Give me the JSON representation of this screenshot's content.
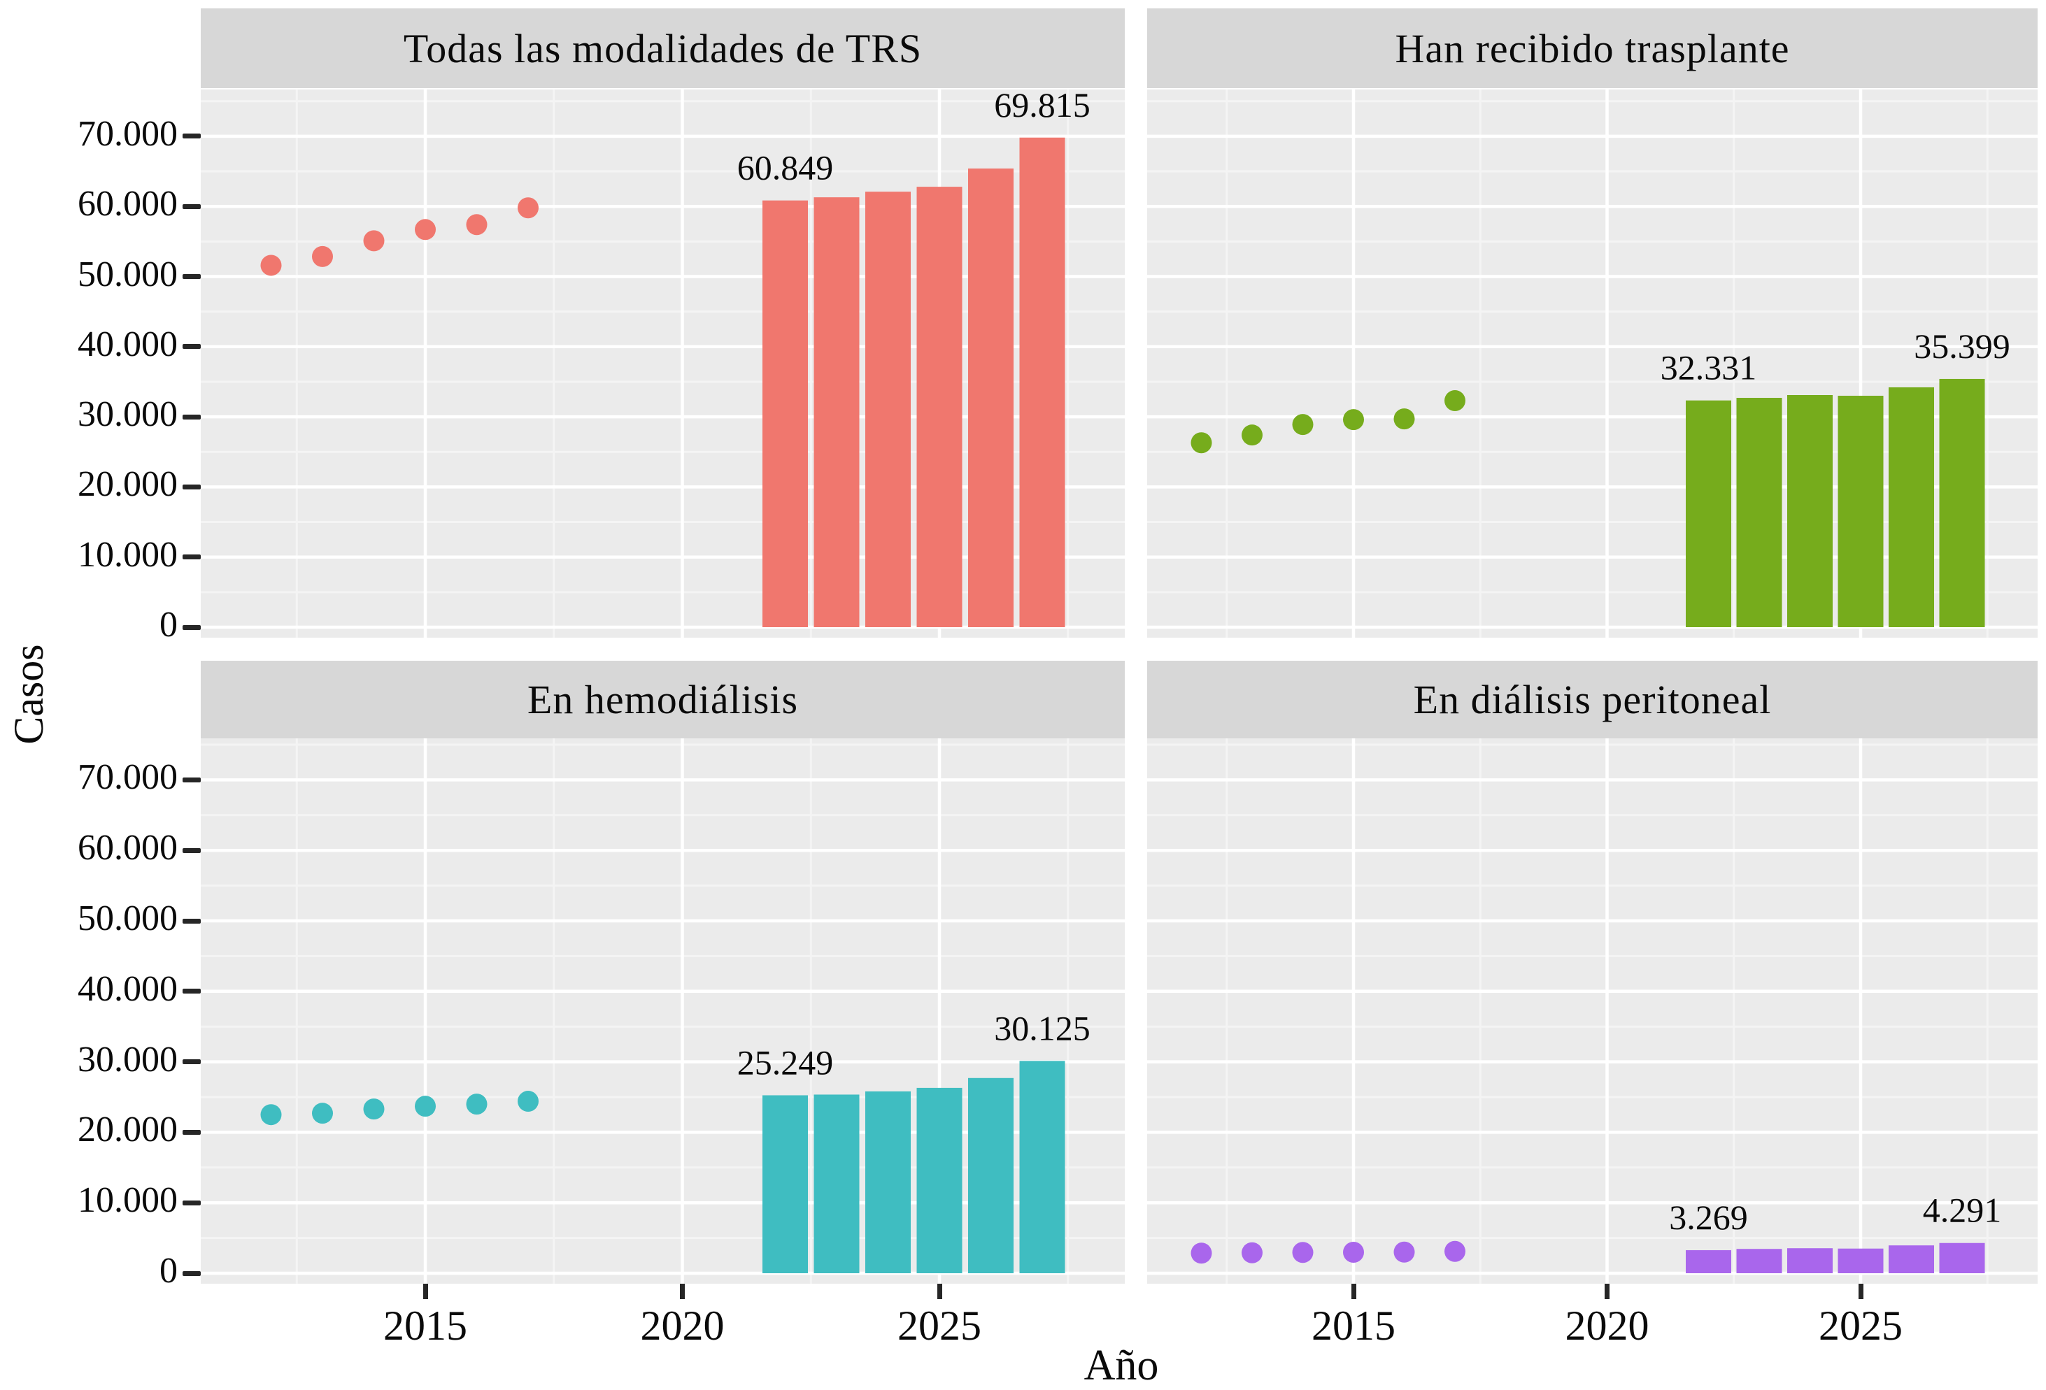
{
  "figure": {
    "ylabel": "Casos",
    "xlabel": "Año",
    "y_tick_labels": [
      "0",
      "10.000",
      "20.000",
      "30.000",
      "40.000",
      "50.000",
      "60.000",
      "70.000"
    ],
    "y_tick_values": [
      0,
      10000,
      20000,
      30000,
      40000,
      50000,
      60000,
      70000
    ],
    "x_tick_labels": [
      "2015",
      "2020",
      "2025"
    ],
    "x_tick_values": [
      2015,
      2020,
      2025
    ],
    "background": "#FFFFFF",
    "panel_background": "#EBEBEB",
    "strip_background": "#D7D7D7",
    "gridline_major": "#FFFFFF",
    "gridline_minor": "#F4F4F4",
    "tick_color": "#262626"
  },
  "chart_data": [
    {
      "type": "scatter+bar",
      "title": "Todas las modalidades de TRS",
      "color": "#F0776E",
      "observed_years": [
        2012,
        2013,
        2014,
        2015,
        2016,
        2017
      ],
      "observed_values": [
        51600,
        52850,
        55100,
        56700,
        57400,
        59800
      ],
      "projected_years": [
        2022,
        2023,
        2024,
        2025,
        2026,
        2027
      ],
      "projected_values": [
        60849,
        61300,
        62100,
        62800,
        65400,
        69815
      ],
      "first_bar_label": "60.849",
      "last_bar_label": "69.815"
    },
    {
      "type": "scatter+bar",
      "title": "Han recibido trasplante",
      "color": "#76AC1C",
      "observed_years": [
        2012,
        2013,
        2014,
        2015,
        2016,
        2017
      ],
      "observed_values": [
        26300,
        27400,
        28900,
        29600,
        29700,
        32300
      ],
      "projected_years": [
        2022,
        2023,
        2024,
        2025,
        2026,
        2027
      ],
      "projected_values": [
        32331,
        32700,
        33100,
        33000,
        34200,
        35399
      ],
      "first_bar_label": "32.331",
      "last_bar_label": "35.399"
    },
    {
      "type": "scatter+bar",
      "title": "En hemodiálisis",
      "color": "#3FBDC1",
      "observed_years": [
        2012,
        2013,
        2014,
        2015,
        2016,
        2017
      ],
      "observed_values": [
        22500,
        22700,
        23300,
        23700,
        24000,
        24400
      ],
      "projected_years": [
        2022,
        2023,
        2024,
        2025,
        2026,
        2027
      ],
      "projected_values": [
        25249,
        25350,
        25800,
        26300,
        27700,
        30125
      ],
      "first_bar_label": "25.249",
      "last_bar_label": "30.125"
    },
    {
      "type": "scatter+bar",
      "title": "En diálisis peritoneal",
      "color": "#A966EC",
      "observed_years": [
        2012,
        2013,
        2014,
        2015,
        2016,
        2017
      ],
      "observed_values": [
        2850,
        2900,
        2950,
        2980,
        3000,
        3100
      ],
      "projected_years": [
        2022,
        2023,
        2024,
        2025,
        2026,
        2027
      ],
      "projected_values": [
        3269,
        3450,
        3550,
        3500,
        3950,
        4291
      ],
      "first_bar_label": "3.269",
      "last_bar_label": "4.291"
    }
  ],
  "axes": {
    "x_domain": [
      2010.8,
      2028.4
    ],
    "y_domain": [
      0,
      77000
    ],
    "y_major_step": 10000,
    "y_minor_values": [
      5000,
      15000,
      25000,
      35000,
      45000,
      55000,
      65000,
      75000
    ],
    "x_minor_ticks": [
      2012.5,
      2017.5,
      2022.5,
      2027.5
    ]
  }
}
